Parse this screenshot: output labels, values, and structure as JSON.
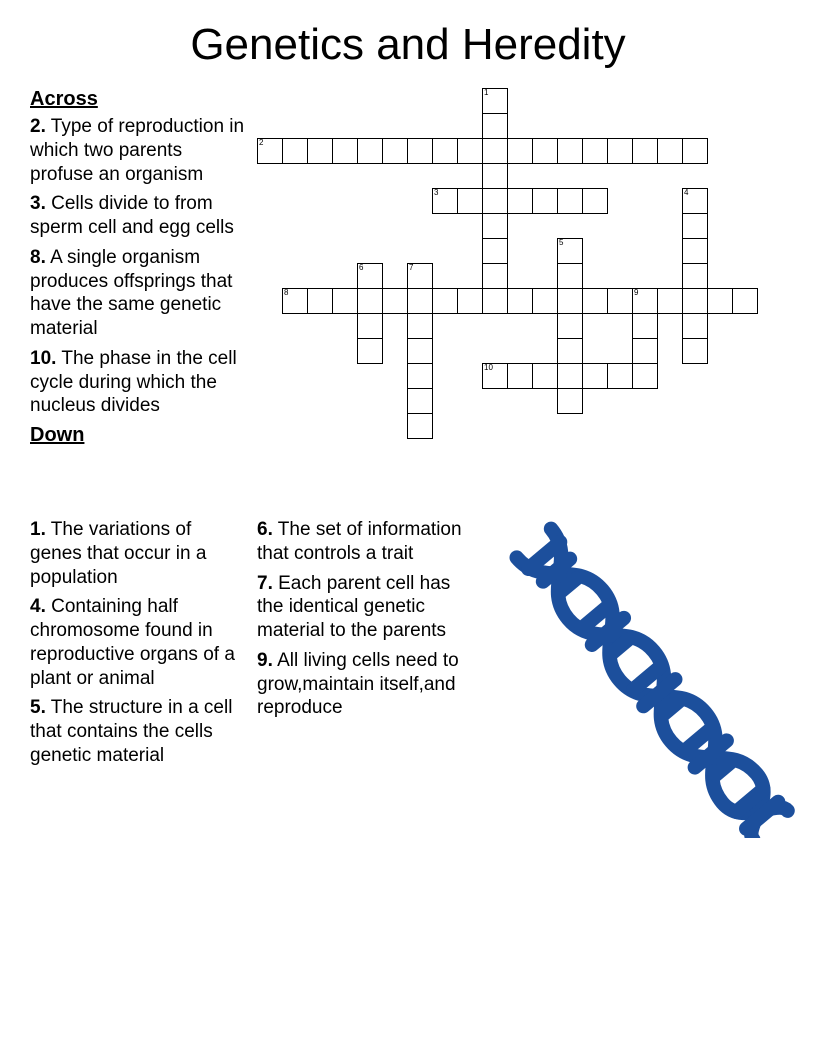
{
  "title": "Genetics and Heredity",
  "sections": {
    "across_header": "Across",
    "down_header": "Down"
  },
  "clues": {
    "across": [
      {
        "num": "2.",
        "text": " Type of reproduction in which two parents profuse an organism"
      },
      {
        "num": "3.",
        "text": " Cells divide to from sperm cell and egg cells"
      },
      {
        "num": "8.",
        "text": " A single organism produces offsprings that have the same genetic material"
      },
      {
        "num": "10.",
        "text": " The phase in the cell cycle during which the nucleus divides"
      }
    ],
    "down_left": [
      {
        "num": "1.",
        "text": " The variations of genes that occur in a population"
      },
      {
        "num": "4.",
        "text": " Containing half chromosome found in reproductive organs of a plant or animal"
      },
      {
        "num": "5.",
        "text": " The structure in a cell that contains the cells genetic material"
      }
    ],
    "down_right": [
      {
        "num": "6.",
        "text": " The set of information that controls a trait"
      },
      {
        "num": "7.",
        "text": " Each parent cell has the identical genetic material to the parents"
      },
      {
        "num": "9.",
        "text": " All living cells need to grow,maintain itself,and reproduce"
      }
    ]
  },
  "grid": {
    "cell_size": 26,
    "origin_x": 0,
    "origin_y": 0,
    "words": [
      {
        "num": "1",
        "row": 0,
        "col": 9,
        "dir": "down",
        "len": 8
      },
      {
        "num": "2",
        "row": 2,
        "col": 0,
        "dir": "across",
        "len": 18
      },
      {
        "num": "3",
        "row": 4,
        "col": 7,
        "dir": "across",
        "len": 7
      },
      {
        "num": "4",
        "row": 4,
        "col": 17,
        "dir": "down",
        "len": 7
      },
      {
        "num": "5",
        "row": 6,
        "col": 12,
        "dir": "down",
        "len": 7
      },
      {
        "num": "6",
        "row": 7,
        "col": 4,
        "dir": "down",
        "len": 4
      },
      {
        "num": "7",
        "row": 7,
        "col": 6,
        "dir": "down",
        "len": 7
      },
      {
        "num": "8",
        "row": 8,
        "col": 1,
        "dir": "across",
        "len": 19
      },
      {
        "num": "9",
        "row": 8,
        "col": 15,
        "dir": "down",
        "len": 4
      },
      {
        "num": "10",
        "row": 11,
        "col": 9,
        "dir": "across",
        "len": 7
      }
    ]
  },
  "colors": {
    "dna": "#1c4f9c",
    "text": "#000000",
    "bg": "#ffffff",
    "cell_border": "#000000"
  }
}
